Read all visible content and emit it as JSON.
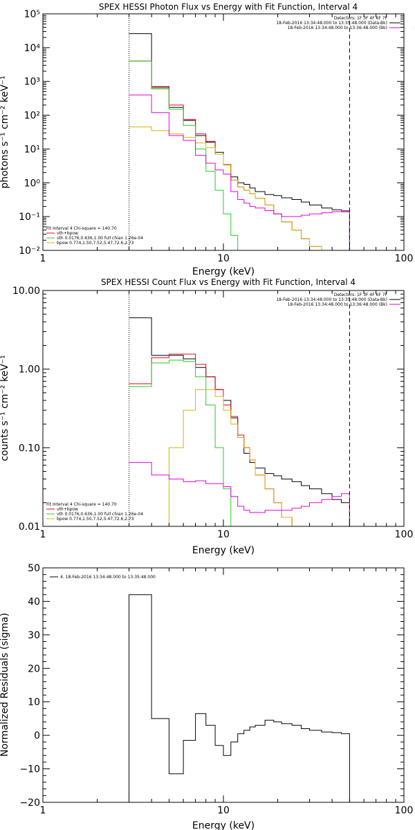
{
  "colors": {
    "data": "#000000",
    "total": "#e8001a",
    "vth": "#1ed11e",
    "bpow": "#d8b400",
    "bk": "#e000e0"
  },
  "charts": [
    {
      "type": "line",
      "title": "SPEX HESSI Photon Flux vs Energy with Fit Function, Interval 4",
      "xlabel": "Energy (keV)",
      "ylabel": "photons s⁻¹ cm⁻² keV⁻¹",
      "xscale": "log",
      "yscale": "log",
      "xlim": [
        1,
        100
      ],
      "ylim": [
        0.01,
        100000
      ],
      "xticks": [
        "1",
        "10",
        "100"
      ],
      "yticks": [
        "10⁻²",
        "10⁻¹",
        "10⁰",
        "10¹",
        "10²",
        "10³",
        "10⁴",
        "10⁵"
      ],
      "vline_dotted": 3,
      "vline_dashed": 50,
      "legend_tr": [
        {
          "text": "Detectors: 1F 3F 4F 6F 7F",
          "color": "data"
        },
        {
          "text": "18-Feb-2016 13:34:48.000 to 13:35:48.000 (Data-Bk)",
          "color": "data"
        },
        {
          "text": "18-Feb-2016 13:34:48.000 to 13:36:48.000 (Bk)",
          "color": "bk"
        }
      ],
      "legend_bl": [
        {
          "text": "Fit Interval  4    Chi-square = 140.70",
          "color": ""
        },
        {
          "text": "vth+bpow",
          "color": "total"
        },
        {
          "text": "vth 0.0176,0.636,1.00  full chian 1.26e-04",
          "color": "vth"
        },
        {
          "text": "bpow 0.774,1.50,7.52,5.47,72.6,2.73",
          "color": "bpow"
        }
      ]
    },
    {
      "type": "line",
      "title": "SPEX HESSI Count Flux vs Energy with Fit Function, Interval 4",
      "xlabel": "Energy (keV)",
      "ylabel": "counts s⁻¹ cm⁻² keV⁻¹",
      "xscale": "log",
      "yscale": "log",
      "xlim": [
        1,
        100
      ],
      "ylim": [
        0.01,
        10
      ],
      "xticks": [
        "1",
        "10",
        "100"
      ],
      "yticks": [
        "0.01",
        "0.10",
        "1.00",
        "10.00"
      ],
      "vline_dotted": 3,
      "vline_dashed": 50,
      "legend_tr": [
        {
          "text": "Detectors: 1F 3F 4F 6F 7F",
          "color": "data"
        },
        {
          "text": "18-Feb-2016 13:34:48.000 to 13:35:48.000 (Data-Bk)",
          "color": "data"
        },
        {
          "text": "18-Feb-2016 13:34:48.000 to 13:36:48.000 (Bk)",
          "color": "bk"
        }
      ],
      "legend_bl": [
        {
          "text": "Fit Interval  4    Chi-square = 140.70",
          "color": ""
        },
        {
          "text": "vth+bpow",
          "color": "total"
        },
        {
          "text": "vth 0.0176,0.636,1.00  full chian 1.26e-04",
          "color": "vth"
        },
        {
          "text": "bpow 0.774,1.50,7.52,5.47,72.6,2.73",
          "color": "bpow"
        }
      ]
    },
    {
      "type": "line",
      "title": "",
      "xlabel": "Energy (keV)",
      "ylabel": "Normalized Residuals (sigma)",
      "xscale": "log",
      "yscale": "linear",
      "xlim": [
        1,
        100
      ],
      "ylim": [
        -20,
        50
      ],
      "xticks": [
        "1",
        "10",
        "100"
      ],
      "yticks": [
        "−20",
        "−10",
        "0",
        "10",
        "20",
        "30",
        "40",
        "50"
      ],
      "legend_tl": [
        {
          "text": "4. 18-Feb-2016 13:34:48.000 to 13:35:48.000",
          "color": "data"
        }
      ]
    }
  ],
  "chart_data": [
    {
      "type": "line",
      "title": "SPEX HESSI Photon Flux vs Energy with Fit Function, Interval 4",
      "bin_edges": [
        3,
        4,
        5,
        6,
        7,
        8,
        9,
        10,
        11,
        12,
        13,
        14,
        15,
        17,
        19,
        21,
        24,
        27,
        30,
        35,
        40,
        45,
        50
      ],
      "series": [
        {
          "name": "18-Feb-2016 13:34:48.000 to 13:35:48.000 (Data-Bk)",
          "color": "data",
          "values": [
            26000,
            700,
            170,
            70,
            25,
            16,
            8,
            3.5,
            1.5,
            1.0,
            0.9,
            0.7,
            0.55,
            0.45,
            0.42,
            0.36,
            0.32,
            0.27,
            0.22,
            0.18,
            0.16,
            0.14
          ]
        },
        {
          "name": "vth+bpow",
          "color": "total",
          "values": [
            4000,
            650,
            200,
            75,
            28,
            17,
            7,
            3.4,
            1.2,
            0.75,
            0.6,
            0.48,
            0.35,
            0.22,
            0.12,
            0.07,
            0.04,
            0.022,
            0.013
          ]
        },
        {
          "name": "vth 0.0176,0.636,1.00  full chian 1.26e-04",
          "color": "vth",
          "values": [
            4000,
            600,
            150,
            50,
            10,
            2.2,
            0.6,
            0.12,
            0.028,
            0.008
          ]
        },
        {
          "name": "bpow 0.774,1.50,7.52,5.47,72.6,2.73",
          "color": "bpow",
          "values": [
            45,
            35,
            28,
            22,
            15,
            11,
            7,
            3.5,
            1.2,
            0.75,
            0.6,
            0.48,
            0.35,
            0.22,
            0.12,
            0.07,
            0.04,
            0.022,
            0.013
          ]
        },
        {
          "name": "18-Feb-2016 13:34:48.000 to 13:36:48.000 (Bk)",
          "color": "bk",
          "values": [
            400,
            120,
            25,
            18,
            6.5,
            3.8,
            2.4,
            1.8,
            0.55,
            0.32,
            0.25,
            0.2,
            0.18,
            0.15,
            0.12,
            0.1,
            0.1,
            0.11,
            0.12,
            0.13,
            0.14,
            0.15
          ]
        }
      ]
    },
    {
      "type": "line",
      "title": "SPEX HESSI Count Flux vs Energy with Fit Function, Interval 4",
      "bin_edges": [
        3,
        4,
        5,
        6,
        7,
        8,
        9,
        10,
        11,
        12,
        13,
        14,
        15,
        17,
        19,
        21,
        24,
        27,
        30,
        35,
        40,
        45,
        50
      ],
      "series": [
        {
          "name": "18-Feb-2016 13:34:48.000 to 13:35:48.000 (Data-Bk)",
          "color": "data",
          "values": [
            4.5,
            1.5,
            1.5,
            1.35,
            1.05,
            0.8,
            0.55,
            0.4,
            0.24,
            0.135,
            0.085,
            0.065,
            0.055,
            0.047,
            0.044,
            0.04,
            0.037,
            0.033,
            0.03,
            0.026,
            0.022,
            0.02
          ]
        },
        {
          "name": "vth+bpow",
          "color": "total",
          "values": [
            0.65,
            1.4,
            1.55,
            1.55,
            1.15,
            0.8,
            0.55,
            0.35,
            0.25,
            0.145,
            0.1,
            0.07,
            0.045,
            0.03,
            0.02,
            0.013,
            0.01
          ]
        },
        {
          "name": "vth 0.0176,0.636,1.00  full chian 1.26e-04",
          "color": "vth",
          "values": [
            0.6,
            1.2,
            1.3,
            1.25,
            0.8,
            0.35,
            0.1,
            0.03,
            0.01
          ]
        },
        {
          "name": "bpow 0.774,1.50,7.52,5.47,72.6,2.73",
          "color": "bpow",
          "values": [
            0.01,
            0.01,
            0.1,
            0.3,
            0.55,
            0.55,
            0.45,
            0.3,
            0.2,
            0.135,
            0.1,
            0.07,
            0.045,
            0.03,
            0.02,
            0.013,
            0.01
          ]
        },
        {
          "name": "18-Feb-2016 13:34:48.000 to 13:36:48.000 (Bk)",
          "color": "bk",
          "values": [
            0.065,
            0.045,
            0.04,
            0.037,
            0.038,
            0.035,
            0.035,
            0.032,
            0.024,
            0.018,
            0.016,
            0.015,
            0.015,
            0.016,
            0.016,
            0.016,
            0.017,
            0.018,
            0.02,
            0.022,
            0.024,
            0.026
          ]
        }
      ]
    },
    {
      "type": "line",
      "title": "",
      "bin_edges": [
        3,
        4,
        5,
        6,
        7,
        8,
        9,
        10,
        11,
        12,
        13,
        14,
        15,
        17,
        19,
        21,
        24,
        27,
        30,
        35,
        40,
        45,
        50
      ],
      "series": [
        {
          "name": "4. 18-Feb-2016 13:34:48.000 to 13:35:48.000",
          "color": "data",
          "values": [
            42,
            5,
            -11.5,
            -1.5,
            6.5,
            3,
            -3,
            -6,
            -2,
            0.5,
            1.5,
            2.5,
            3,
            4.5,
            4,
            3.5,
            3,
            2,
            1.5,
            1,
            0.8,
            0.5
          ]
        }
      ]
    }
  ]
}
